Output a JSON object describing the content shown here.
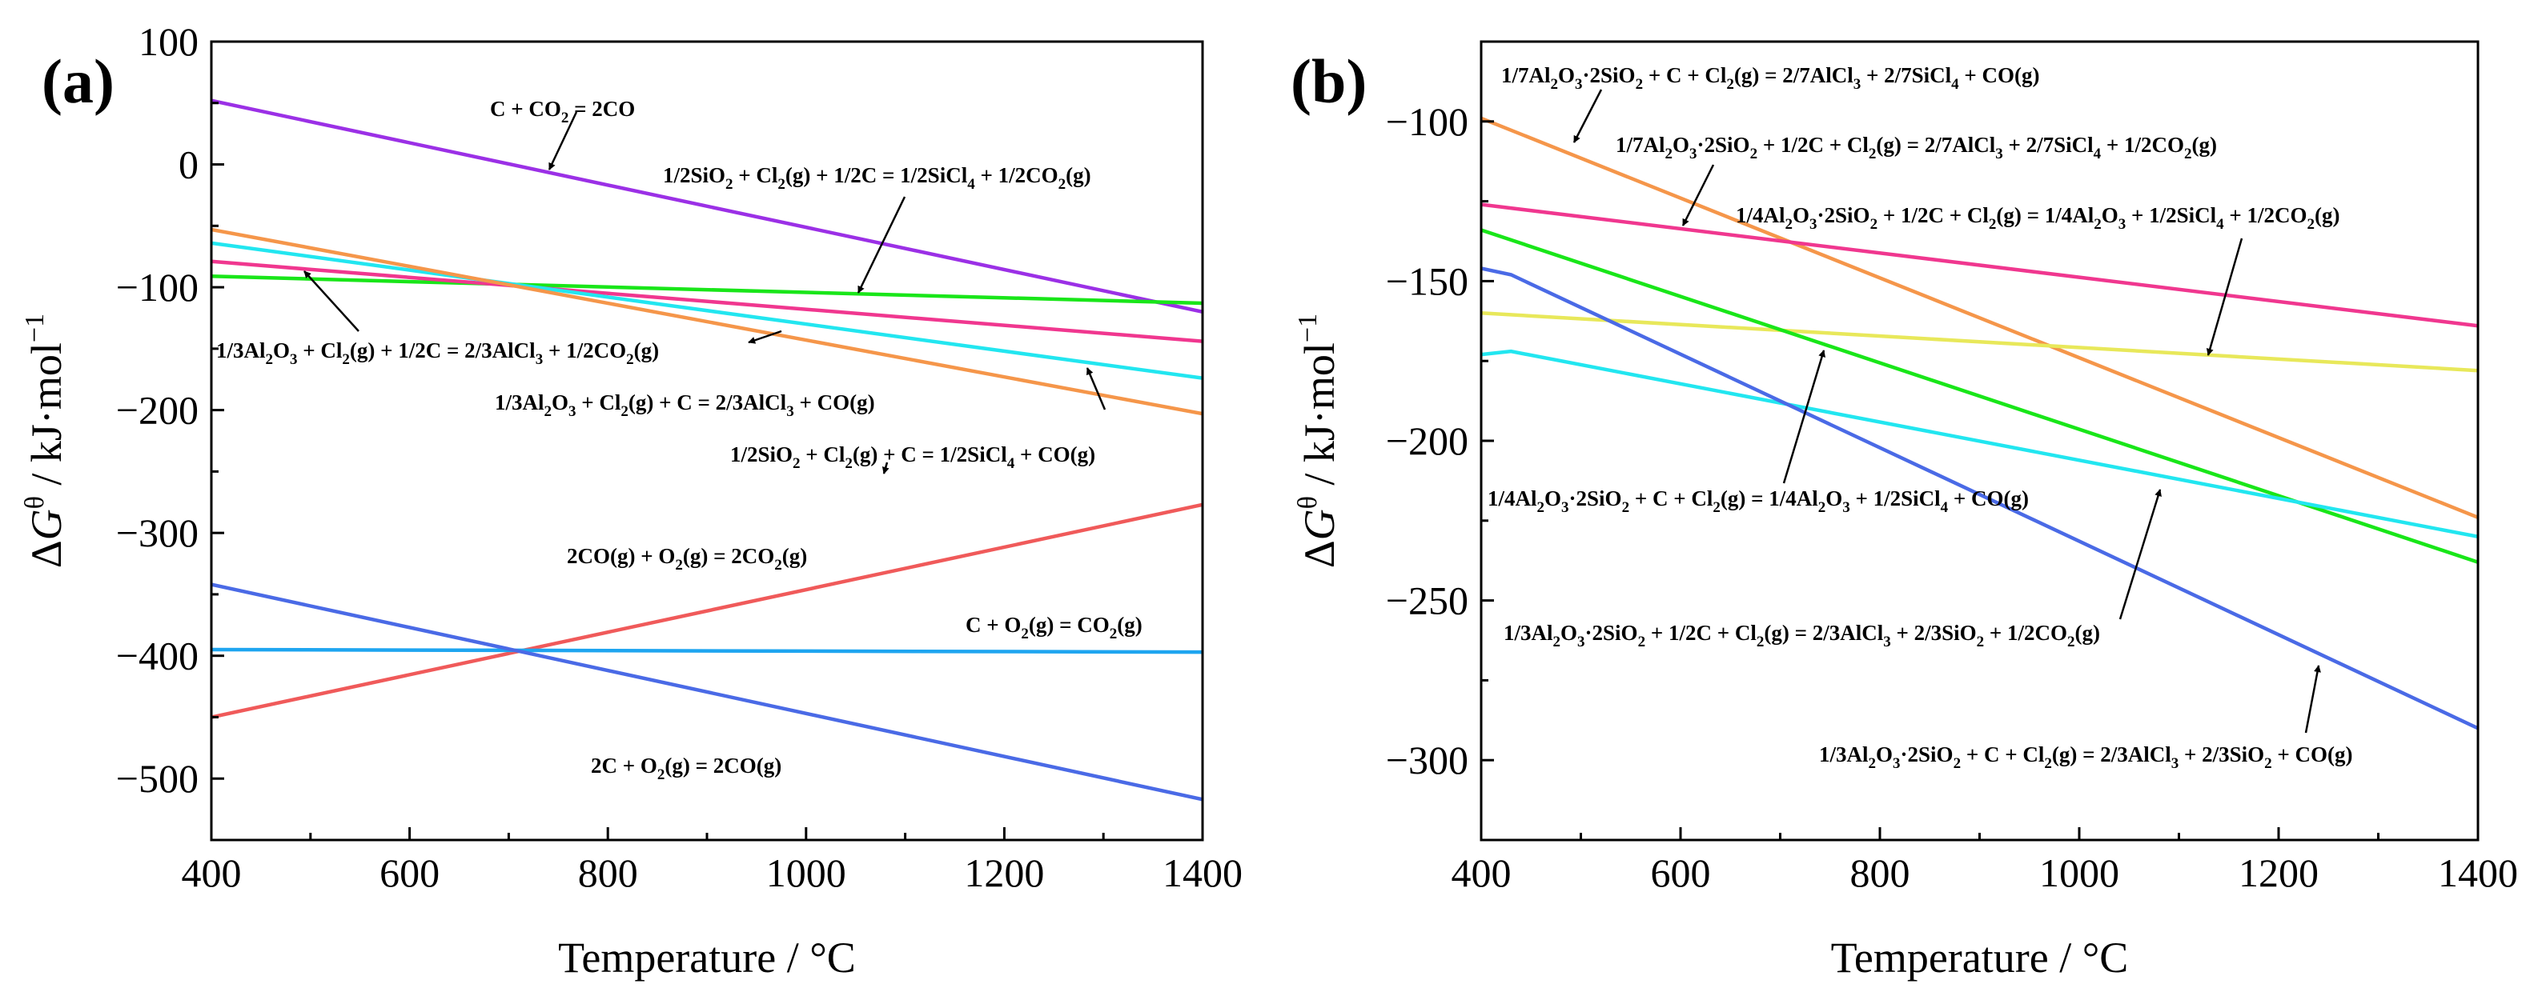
{
  "chart_data": [
    {
      "type": "line",
      "panel_label": "(a)",
      "xlabel": "Temperature / °C",
      "ylabel": "ΔGθ / kJ·mol−1",
      "xlim": [
        400,
        1400
      ],
      "ylim": [
        -550,
        100
      ],
      "xticks": [
        400,
        600,
        800,
        1000,
        1200,
        1400
      ],
      "yticks": [
        100,
        0,
        -100,
        -200,
        -300,
        -400,
        -500
      ],
      "ytick_labels": [
        "100",
        "0",
        "−100",
        "−200",
        "−300",
        "−400",
        "−500"
      ],
      "grid": false,
      "series": [
        {
          "name": "C + CO2 = 2CO",
          "color": "#9b30e6",
          "x": [
            400,
            1400
          ],
          "y": [
            52,
            -120
          ]
        },
        {
          "name": "1/2SiO2 + Cl2(g) + 1/2C = 1/2SiCl4 + 1/2CO2(g)",
          "color": "#19e619",
          "x": [
            400,
            1400
          ],
          "y": [
            -91,
            -113
          ]
        },
        {
          "name": "1/3Al2O3 + Cl2(g) + 1/2C = 2/3AlCl3 + 1/2CO2(g)",
          "color": "#f0378f",
          "x": [
            400,
            1400
          ],
          "y": [
            -79,
            -144
          ]
        },
        {
          "name": "1/3Al2O3 + Cl2(g) + C = 2/3AlCl3 + CO(g)",
          "color": "#22e6f0",
          "x": [
            400,
            1400
          ],
          "y": [
            -64,
            -174
          ]
        },
        {
          "name": "1/2SiO2 + Cl2(g) + C = 1/2SiCl4 + CO(g)",
          "color": "#f5964a",
          "x": [
            400,
            1400
          ],
          "y": [
            -53,
            -203
          ]
        },
        {
          "name": "2CO(g) + O2(g) = 2CO2(g)",
          "color": "#f05a5a",
          "x": [
            400,
            1400
          ],
          "y": [
            -450,
            -277
          ]
        },
        {
          "name": "C + O2(g) = CO2(g)",
          "color": "#1ea5f0",
          "x": [
            400,
            1400
          ],
          "y": [
            -395,
            -397
          ]
        },
        {
          "name": "2C + O2(g) = 2CO(g)",
          "color": "#4a6ae6",
          "x": [
            400,
            1400
          ],
          "y": [
            -342,
            -517
          ]
        }
      ],
      "annotations": [
        {
          "text": "C + CO2 = 2CO",
          "x": 740,
          "y": 47
        },
        {
          "text": "1/2SiO2 + Cl2(g) + 1/2C = 1/2SiCl4 + 1/2CO2(g)",
          "x": 865,
          "y": -5
        },
        {
          "text": "1/3Al2O3 + Cl2(g) + 1/2C = 2/3AlCl3 + 1/2CO2(g)",
          "x": 400,
          "y": -152
        },
        {
          "text": "1/3Al2O3 + Cl2(g) + C = 2/3AlCl3 + CO(g)",
          "x": 680,
          "y": -196
        },
        {
          "text": "1/2SiO2 + Cl2(g) + C = 1/2SiCl4 + CO(g)",
          "x": 922,
          "y": -235
        },
        {
          "text": "2CO(g) + O2(g) = 2CO2(g)",
          "x": 755,
          "y": -322
        },
        {
          "text": "C + O2(g) = CO2(g)",
          "x": 1115,
          "y": -375
        },
        {
          "text": "2C + O2(g) = 2CO(g)",
          "x": 795,
          "y": -485
        }
      ]
    },
    {
      "type": "line",
      "panel_label": "(b)",
      "xlabel": "Temperature / °C",
      "ylabel": "ΔGθ / kJ·mol−1",
      "xlim": [
        400,
        1400
      ],
      "ylim": [
        -325,
        -75
      ],
      "xticks": [
        400,
        600,
        800,
        1000,
        1200,
        1400
      ],
      "yticks": [
        -100,
        -150,
        -200,
        -250,
        -300
      ],
      "ytick_labels": [
        "−100",
        "−150",
        "−200",
        "−250",
        "−300"
      ],
      "grid": false,
      "series": [
        {
          "name": "1/7Al2O3·2SiO2 + C + Cl2(g) = 2/7AlCl3 + 2/7SiCl4 + CO(g)",
          "color": "#f5964a",
          "x": [
            400,
            1400
          ],
          "y": [
            -99,
            -224
          ]
        },
        {
          "name": "1/7Al2O3·2SiO2 + 1/2C + Cl2(g) = 2/7AlCl3 + 2/7SiCl4 + 1/2CO2(g)",
          "color": "#f0378f",
          "x": [
            400,
            1400
          ],
          "y": [
            -126,
            -164
          ]
        },
        {
          "name": "1/4Al2O3·2SiO2 + 1/2C + Cl2(g) = 1/4Al2O3 + 1/2SiCl4 + 1/2CO2(g)",
          "color": "#e8e85a",
          "x": [
            400,
            1400
          ],
          "y": [
            -160,
            -178
          ]
        },
        {
          "name": "1/4Al2O3·2SiO2 + C + Cl2(g) = 1/4Al2O3 + 1/2SiCl4 + CO(g)",
          "color": "#19e619",
          "x": [
            400,
            1400
          ],
          "y": [
            -134,
            -238
          ]
        },
        {
          "name": "1/3Al2O3·2SiO2 + 1/2C + Cl2(g) = 2/3AlCl3 + 2/3SiO2 + 1/2CO2(g)",
          "color": "#22e6f0",
          "x": [
            400,
            430,
            1400
          ],
          "y": [
            -173,
            -172,
            -230
          ]
        },
        {
          "name": "1/3Al2O3·2SiO2 + C + Cl2(g) = 2/3AlCl3 + 2/3SiO2 + CO(g)",
          "color": "#4a6ae6",
          "x": [
            400,
            430,
            1400
          ],
          "y": [
            -146,
            -148,
            -290
          ]
        }
      ],
      "annotations": [
        {
          "text": "1/7Al2O3·2SiO2 + C + Cl2(g) = 2/7AlCl3 + 2/7SiCl4 + CO(g)",
          "x": 420,
          "y": -82
        },
        {
          "text": "1/7Al2O3·2SiO2 + 1/2C + Cl2(g) = 2/7AlCl3 + 2/7SiCl4 + 1/2CO2(g)",
          "x": 535,
          "y": -107
        },
        {
          "text": "1/4Al2O3·2SiO2 + 1/2C + Cl2(g) = 1/4Al2O3 + 1/2SiCl4 + 1/2CO2(g)",
          "x": 660,
          "y": -136
        },
        {
          "text": "1/4Al2O3·2SiO2 + C + Cl2(g) = 1/4Al2O3 + 1/2SiCl4 + CO(g)",
          "x": 400,
          "y": -216
        },
        {
          "text": "1/3Al2O3·2SiO2 + 1/2C + Cl2(g) = 2/3AlCl3 + 2/3SiO2 + 1/2CO2(g)",
          "x": 420,
          "y": -262
        },
        {
          "text": "1/3Al2O3·2SiO2 + C + Cl2(g) = 2/3AlCl3 + 2/3SiO2 + CO(g)",
          "x": 740,
          "y": -300
        }
      ]
    }
  ]
}
